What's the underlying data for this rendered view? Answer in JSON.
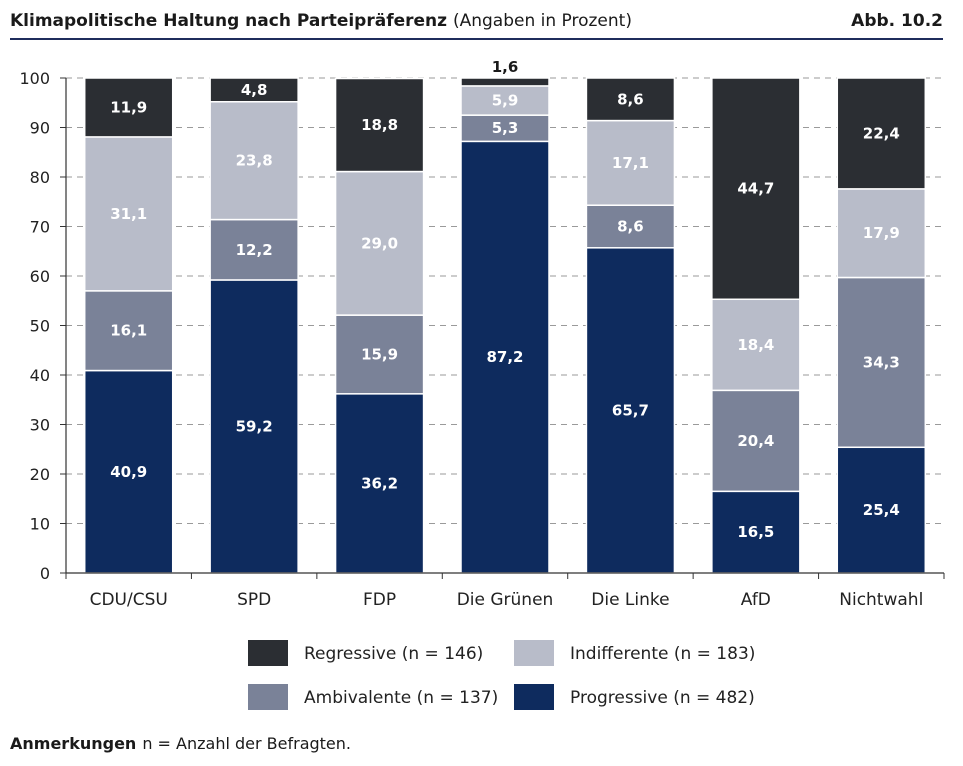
{
  "header": {
    "title": "Klimapolitische Haltung nach Parteipräferenz",
    "subtitle": "(Angaben in Prozent)",
    "figure_label": "Abb. 10.2"
  },
  "note": {
    "label": "Anmerkungen",
    "text": "n = Anzahl der Befragten."
  },
  "colors": {
    "Progressive": "#0e2b5e",
    "Ambivalente": "#7a8298",
    "Indifferente": "#b8bcc9",
    "Regressive": "#2b2e33"
  },
  "chart_data": {
    "type": "bar",
    "stacked": true,
    "categories": [
      "CDU/CSU",
      "SPD",
      "FDP",
      "Die Grünen",
      "Die Linke",
      "AfD",
      "Nichtwahl"
    ],
    "series": [
      {
        "name": "Progressive (n = 482)",
        "key": "Progressive",
        "values": [
          40.9,
          59.2,
          36.2,
          87.2,
          65.7,
          16.5,
          25.4
        ],
        "labels": [
          "40,9",
          "59,2",
          "36,2",
          "87,2",
          "65,7",
          "16,5",
          "25,4"
        ]
      },
      {
        "name": "Ambivalente (n = 137)",
        "key": "Ambivalente",
        "values": [
          16.1,
          12.2,
          15.9,
          5.3,
          8.6,
          20.4,
          34.3
        ],
        "labels": [
          "16,1",
          "12,2",
          "15,9",
          "5,3",
          "8,6",
          "20,4",
          "34,3"
        ]
      },
      {
        "name": "Indifferente (n = 183)",
        "key": "Indifferente",
        "values": [
          31.1,
          23.8,
          29.0,
          5.9,
          17.1,
          18.4,
          17.9
        ],
        "labels": [
          "31,1",
          "23,8",
          "29,0",
          "5,9",
          "17,1",
          "18,4",
          "17,9"
        ]
      },
      {
        "name": "Regressive (n = 146)",
        "key": "Regressive",
        "values": [
          11.9,
          4.8,
          18.8,
          1.6,
          8.6,
          44.7,
          22.4
        ],
        "labels": [
          "11,9",
          "4,8",
          "18,8",
          "1,6",
          "8,6",
          "44,7",
          "22,4"
        ]
      }
    ],
    "ylim": [
      0,
      100
    ],
    "yticks": [
      0,
      10,
      20,
      30,
      40,
      50,
      60,
      70,
      80,
      90,
      100
    ],
    "grid": "horizontal dashed",
    "legend": {
      "placement": "bottom",
      "order": [
        "Regressive",
        "Indifferente",
        "Ambivalente",
        "Progressive"
      ]
    }
  }
}
